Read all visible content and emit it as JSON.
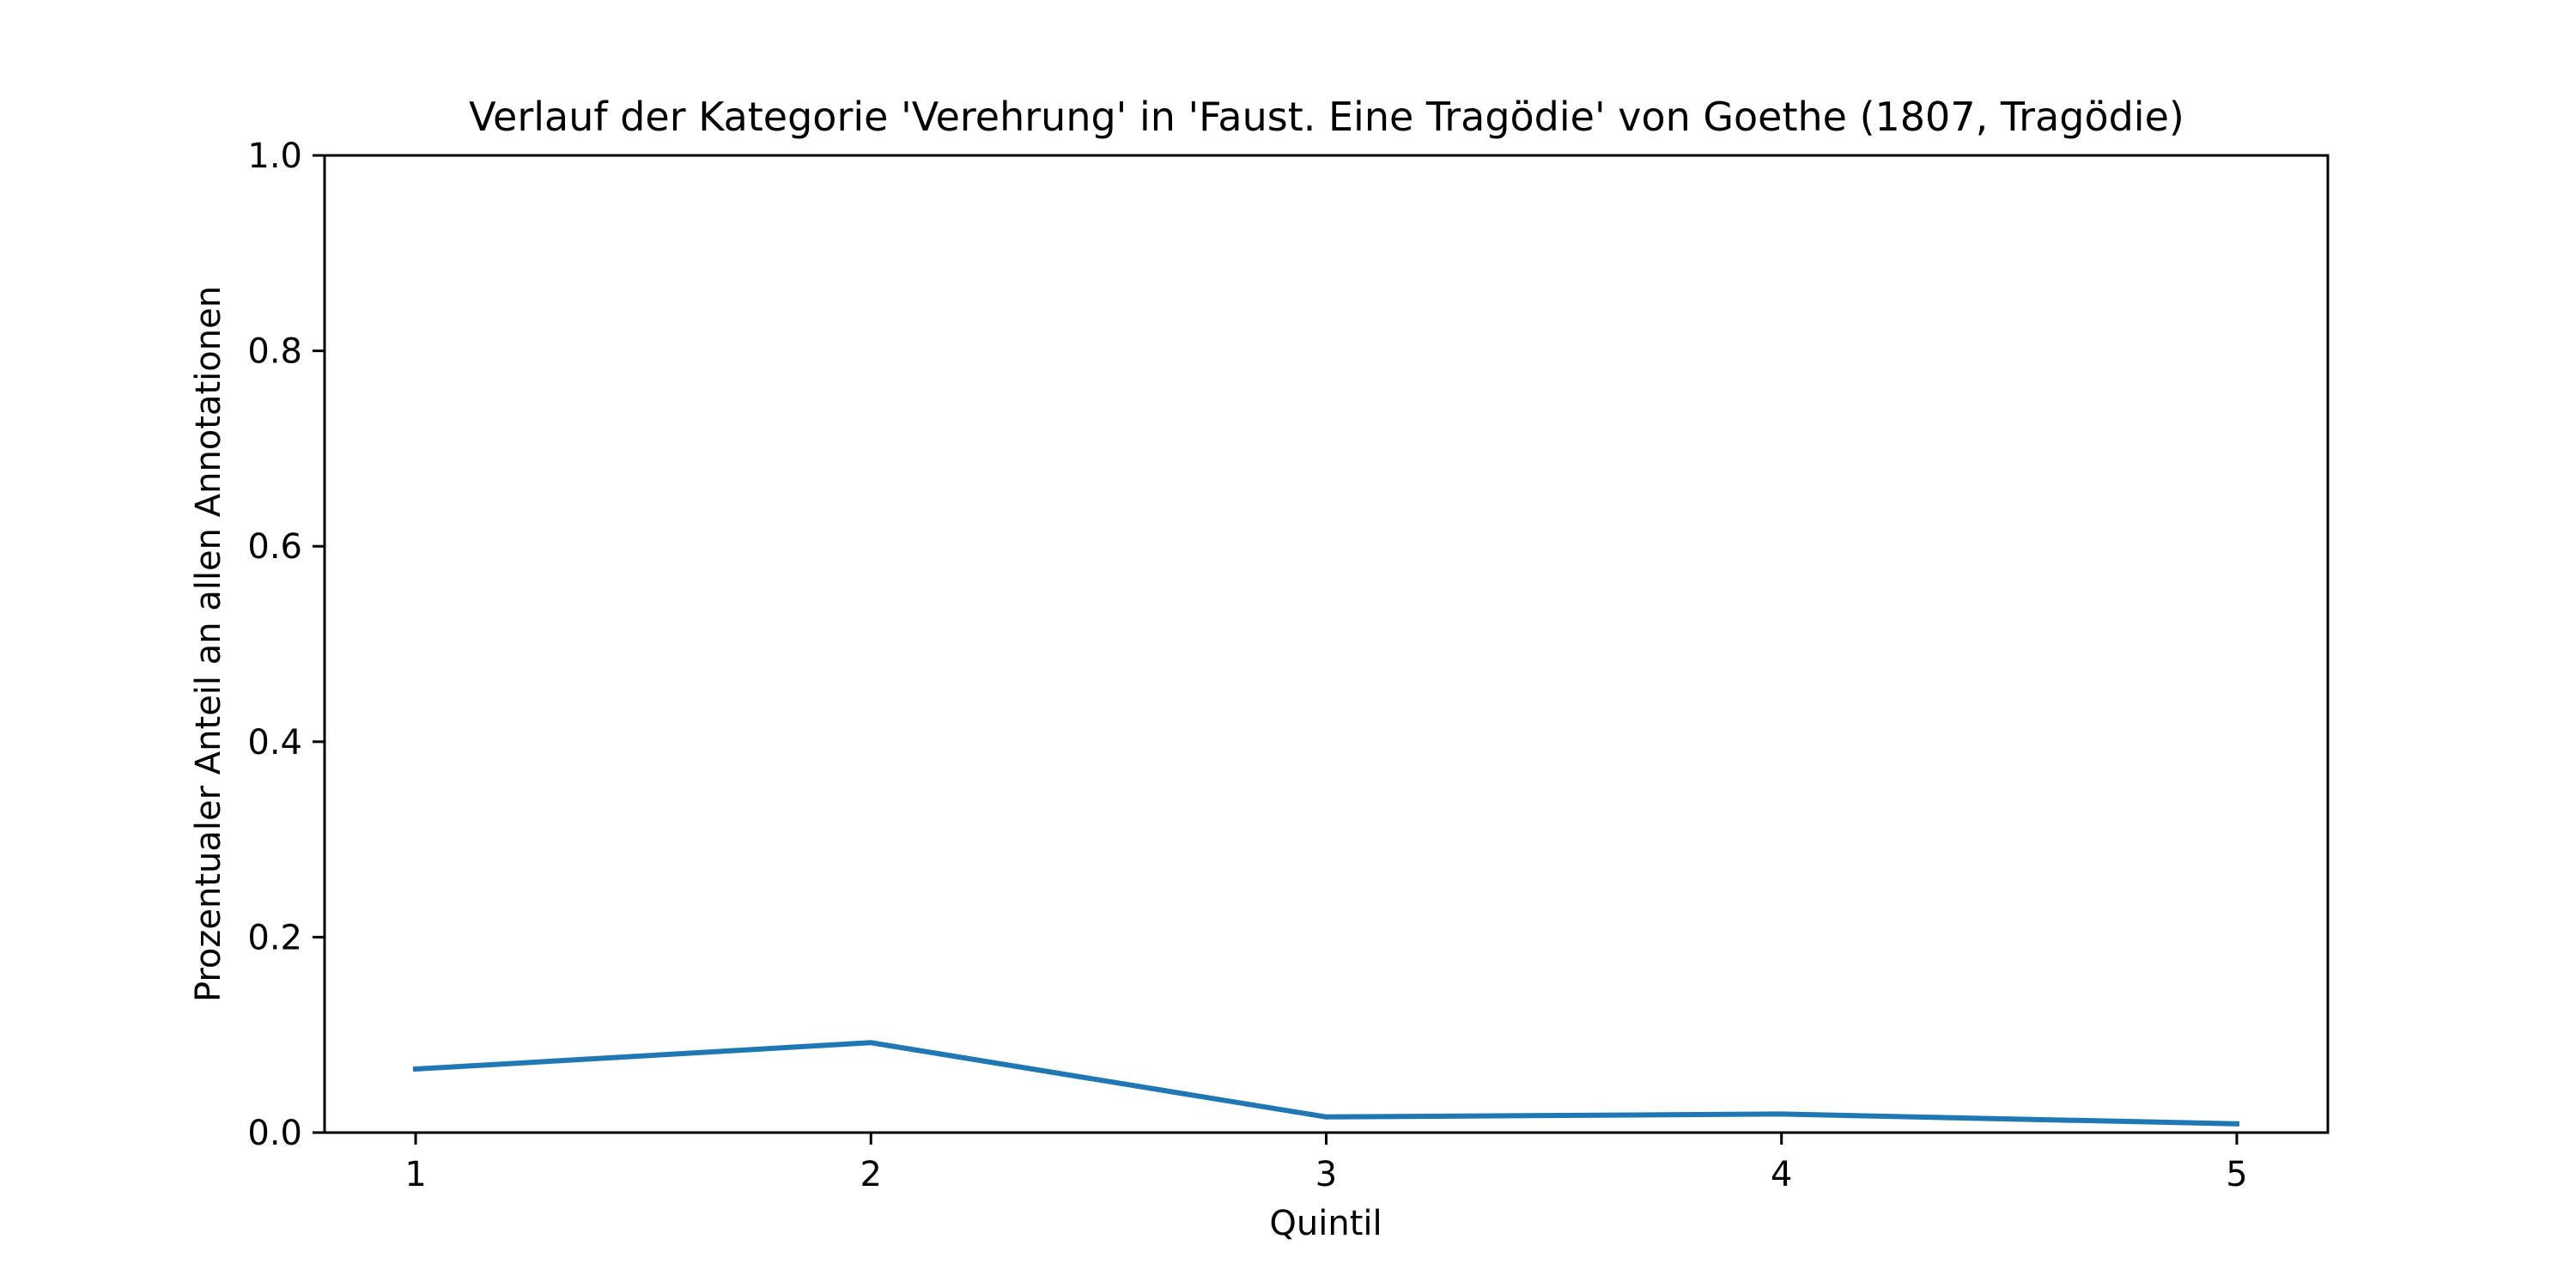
{
  "chart_data": {
    "type": "line",
    "title": "Verlauf der Kategorie 'Verehrung' in 'Faust. Eine Tragödie' von Goethe (1807, Tragödie)",
    "xlabel": "Quintil",
    "ylabel": "Prozentualer Anteil an allen Annotationen",
    "x": [
      1,
      2,
      3,
      4,
      5
    ],
    "x_tick_labels": [
      "1",
      "2",
      "3",
      "4",
      "5"
    ],
    "xlim": [
      0.8,
      5.2
    ],
    "ylim": [
      0.0,
      1.0
    ],
    "y_ticks": [
      0.0,
      0.2,
      0.4,
      0.6,
      0.8,
      1.0
    ],
    "y_tick_labels": [
      "0.0",
      "0.2",
      "0.4",
      "0.6",
      "0.8",
      "1.0"
    ],
    "grid": false,
    "series": [
      {
        "values": [
          0.065,
          0.092,
          0.016,
          0.019,
          0.009
        ],
        "color": "#1f77b4"
      }
    ]
  }
}
